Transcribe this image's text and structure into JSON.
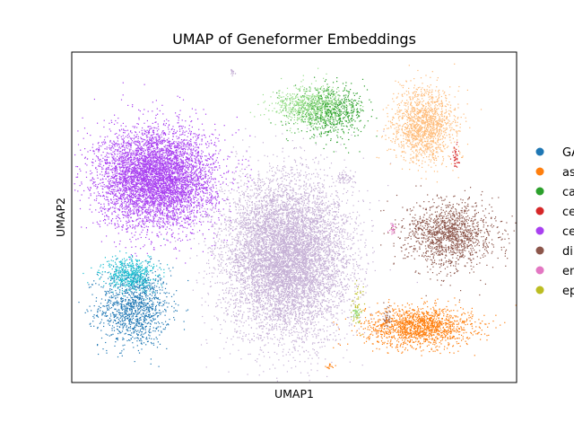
{
  "chart_data": {
    "type": "scatter",
    "title": "UMAP of Geneformer Embeddings",
    "xlabel": "UMAP1",
    "ylabel": "UMAP2",
    "grid": false,
    "legend_position": "right, outside plot",
    "series": [
      {
        "name": "GA",
        "color": "#1f77b4",
        "clusters": [
          {
            "cx": 0.14,
            "cy": 0.23,
            "sx": 0.04,
            "sy": 0.06,
            "n": 1200
          }
        ]
      },
      {
        "name": "as",
        "color": "#ff7f0e",
        "clusters": [
          {
            "cx": 0.78,
            "cy": 0.17,
            "sx": 0.06,
            "sy": 0.03,
            "n": 1500
          },
          {
            "cx": 0.58,
            "cy": 0.05,
            "sx": 0.005,
            "sy": 0.005,
            "n": 15
          }
        ]
      },
      {
        "name": "ca",
        "color": "#2ca02c",
        "clusters": [
          {
            "cx": 0.58,
            "cy": 0.82,
            "sx": 0.04,
            "sy": 0.035,
            "n": 700
          }
        ]
      },
      {
        "name": "ce",
        "color": "#d62728",
        "clusters": [
          {
            "cx": 0.86,
            "cy": 0.69,
            "sx": 0.005,
            "sy": 0.02,
            "n": 40
          }
        ]
      },
      {
        "name": "ce",
        "color": "#a940f0",
        "clusters": [
          {
            "cx": 0.19,
            "cy": 0.62,
            "sx": 0.065,
            "sy": 0.075,
            "n": 5500
          }
        ]
      },
      {
        "name": "di",
        "color": "#8c564b",
        "clusters": [
          {
            "cx": 0.85,
            "cy": 0.45,
            "sx": 0.05,
            "sy": 0.05,
            "n": 1400
          },
          {
            "cx": 0.71,
            "cy": 0.2,
            "sx": 0.005,
            "sy": 0.015,
            "n": 30
          }
        ]
      },
      {
        "name": "en",
        "color": "#e377c2",
        "clusters": [
          {
            "cx": 0.72,
            "cy": 0.47,
            "sx": 0.004,
            "sy": 0.01,
            "n": 25
          }
        ]
      },
      {
        "name": "ep",
        "color": "#bcbd22",
        "clusters": [
          {
            "cx": 0.64,
            "cy": 0.22,
            "sx": 0.006,
            "sy": 0.03,
            "n": 60
          }
        ]
      },
      {
        "name": "",
        "color": "#17becf",
        "clusters": [
          {
            "cx": 0.13,
            "cy": 0.33,
            "sx": 0.03,
            "sy": 0.025,
            "n": 500
          }
        ]
      },
      {
        "name": "",
        "color": "#c5b0d5",
        "clusters": [
          {
            "cx": 0.48,
            "cy": 0.38,
            "sx": 0.07,
            "sy": 0.12,
            "n": 8000
          },
          {
            "cx": 0.61,
            "cy": 0.62,
            "sx": 0.01,
            "sy": 0.01,
            "n": 50
          },
          {
            "cx": 0.36,
            "cy": 0.94,
            "sx": 0.005,
            "sy": 0.004,
            "n": 15
          }
        ]
      },
      {
        "name": "",
        "color": "#98df8a",
        "clusters": [
          {
            "cx": 0.53,
            "cy": 0.84,
            "sx": 0.04,
            "sy": 0.03,
            "n": 600
          },
          {
            "cx": 0.64,
            "cy": 0.21,
            "sx": 0.005,
            "sy": 0.01,
            "n": 30
          }
        ]
      },
      {
        "name": "",
        "color": "#ffbb78",
        "clusters": [
          {
            "cx": 0.79,
            "cy": 0.78,
            "sx": 0.035,
            "sy": 0.055,
            "n": 1400
          }
        ]
      }
    ]
  }
}
